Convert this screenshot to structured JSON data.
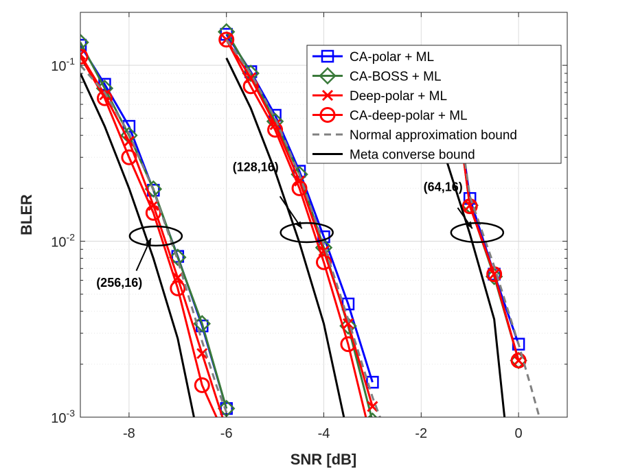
{
  "chart_data": {
    "type": "line",
    "xlabel": "SNR [dB]",
    "ylabel": "BLER",
    "xlim": [
      -9,
      1
    ],
    "ylim": [
      0.001,
      0.2
    ],
    "yscale": "log",
    "grid": true,
    "legend_position": "top-right",
    "xticks": [
      -8,
      -6,
      -4,
      -2,
      0
    ],
    "xtick_labels": [
      "-8",
      "-6",
      "-4",
      "-2",
      "0"
    ],
    "yticks": [
      0.001,
      0.01,
      0.1
    ],
    "ytick_labels": [
      {
        "base": "10",
        "exp": "-3"
      },
      {
        "base": "10",
        "exp": "-2"
      },
      {
        "base": "10",
        "exp": "-1"
      }
    ],
    "annotations": [
      {
        "text": "(256,16)",
        "x": -8.2,
        "y": 0.0055,
        "ellipse": {
          "cx": -7.45,
          "cy": 0.0107
        },
        "arrow_from": {
          "x": -7.85,
          "y": 0.0068
        },
        "arrow_to": {
          "x": -7.55,
          "y": 0.0104
        }
      },
      {
        "text": "(128,16)",
        "x": -5.4,
        "y": 0.025,
        "ellipse": {
          "cx": -4.35,
          "cy": 0.0112
        },
        "arrow_from": {
          "x": -4.9,
          "y": 0.018
        },
        "arrow_to": {
          "x": -4.45,
          "y": 0.0118
        }
      },
      {
        "text": "(64,16)",
        "x": -1.55,
        "y": 0.0193,
        "ellipse": {
          "cx": -0.85,
          "cy": 0.0112
        },
        "arrow_from": {
          "x": -1.25,
          "y": 0.0155
        },
        "arrow_to": {
          "x": -0.95,
          "y": 0.0118
        }
      }
    ],
    "series": [
      {
        "name": "CA-polar + ML",
        "color": "#0000ff",
        "marker": "square",
        "dash": "solid",
        "groups": [
          {
            "x": [
              -9,
              -8.5,
              -8,
              -7.5,
              -7,
              -6.5,
              -6
            ],
            "y": [
              0.13,
              0.078,
              0.045,
              0.0195,
              0.0082,
              0.0033,
              0.00112
            ]
          },
          {
            "x": [
              -6,
              -5.5,
              -5,
              -4.5,
              -4,
              -3.5,
              -3
            ],
            "y": [
              0.15,
              0.092,
              0.052,
              0.025,
              0.0106,
              0.0044,
              0.00158
            ]
          },
          {
            "x": [
              -1.4,
              -1,
              -0.5,
              0
            ],
            "y": [
              0.11,
              0.0175,
              0.0065,
              0.0026
            ]
          }
        ]
      },
      {
        "name": "CA-BOSS + ML",
        "color": "#3a7a3a",
        "marker": "diamond",
        "dash": "solid",
        "groups": [
          {
            "x": [
              -9,
              -8.5,
              -8,
              -7.5,
              -7,
              -6.5,
              -6
            ],
            "y": [
              0.135,
              0.074,
              0.04,
              0.0198,
              0.0081,
              0.0034,
              0.00112
            ]
          },
          {
            "x": [
              -6,
              -5.5,
              -5,
              -4.5,
              -4,
              -3.5,
              -3
            ],
            "y": [
              0.155,
              0.09,
              0.048,
              0.024,
              0.0092,
              0.0033,
              0.00095
            ]
          },
          {
            "x": [
              -1.4,
              -1,
              -0.5,
              0
            ],
            "y": [
              0.105,
              0.016,
              0.0063,
              0.0021
            ]
          }
        ]
      },
      {
        "name": "Deep-polar + ML",
        "color": "#ff0000",
        "marker": "x",
        "dash": "solid",
        "groups": [
          {
            "x": [
              -9,
              -8.5,
              -8,
              -7.5,
              -7,
              -6.5,
              -6
            ],
            "y": [
              0.115,
              0.068,
              0.037,
              0.016,
              0.0062,
              0.0023,
              0.00085
            ]
          },
          {
            "x": [
              -6,
              -5.5,
              -5,
              -4.5,
              -4,
              -3.5,
              -3
            ],
            "y": [
              0.14,
              0.085,
              0.046,
              0.022,
              0.0088,
              0.0034,
              0.00115
            ]
          },
          {
            "x": [
              -1.4,
              -1,
              -0.5,
              0
            ],
            "y": [
              0.11,
              0.016,
              0.0065,
              0.0021
            ]
          }
        ]
      },
      {
        "name": "CA-deep-polar + ML",
        "color": "#ff0000",
        "marker": "circle",
        "dash": "solid",
        "groups": [
          {
            "x": [
              -9,
              -8.5,
              -8,
              -7.5,
              -7,
              -6.5,
              -6
            ],
            "y": [
              0.112,
              0.065,
              0.03,
              0.0145,
              0.0054,
              0.00152,
              0.00075
            ]
          },
          {
            "x": [
              -6,
              -5.5,
              -5,
              -4.5,
              -4,
              -3.5,
              -3
            ],
            "y": [
              0.14,
              0.076,
              0.043,
              0.02,
              0.0076,
              0.0026,
              0.0007
            ]
          },
          {
            "x": [
              -1.4,
              -1,
              -0.5,
              0
            ],
            "y": [
              0.11,
              0.0158,
              0.0065,
              0.0021
            ]
          }
        ]
      },
      {
        "name": "Normal approximation bound",
        "color": "#808080",
        "marker": "none",
        "dash": "dashed",
        "groups": [
          {
            "x": [
              -9,
              -8.5,
              -8,
              -7.5,
              -7,
              -6.5,
              -6.2,
              -5.9
            ],
            "y": [
              0.1,
              0.07,
              0.041,
              0.0195,
              0.0078,
              0.0027,
              0.0015,
              0.0009
            ]
          },
          {
            "x": [
              -6,
              -5.5,
              -5,
              -4.5,
              -4,
              -3.5,
              -3,
              -2.75
            ],
            "y": [
              0.14,
              0.09,
              0.05,
              0.024,
              0.0096,
              0.0036,
              0.0013,
              0.00085
            ]
          },
          {
            "x": [
              -1.4,
              -1,
              -0.5,
              0,
              0.25,
              0.45
            ],
            "y": [
              0.11,
              0.018,
              0.0072,
              0.0026,
              0.0015,
              0.00095
            ]
          }
        ]
      },
      {
        "name": "Meta converse bound",
        "color": "#000000",
        "marker": "none",
        "dash": "solid",
        "groups": [
          {
            "x": [
              -9,
              -8.5,
              -8,
              -7.5,
              -7,
              -6.65
            ],
            "y": [
              0.09,
              0.045,
              0.02,
              0.008,
              0.0028,
              0.00095
            ]
          },
          {
            "x": [
              -6,
              -5.5,
              -5,
              -4.5,
              -4,
              -3.57
            ],
            "y": [
              0.11,
              0.057,
              0.025,
              0.0098,
              0.0034,
              0.00095
            ]
          },
          {
            "x": [
              -2.3,
              -2,
              -1.5,
              -1,
              -0.5,
              -0.28
            ],
            "y": [
              0.11,
              0.072,
              0.03,
              0.011,
              0.0036,
              0.00095
            ]
          }
        ]
      }
    ]
  }
}
